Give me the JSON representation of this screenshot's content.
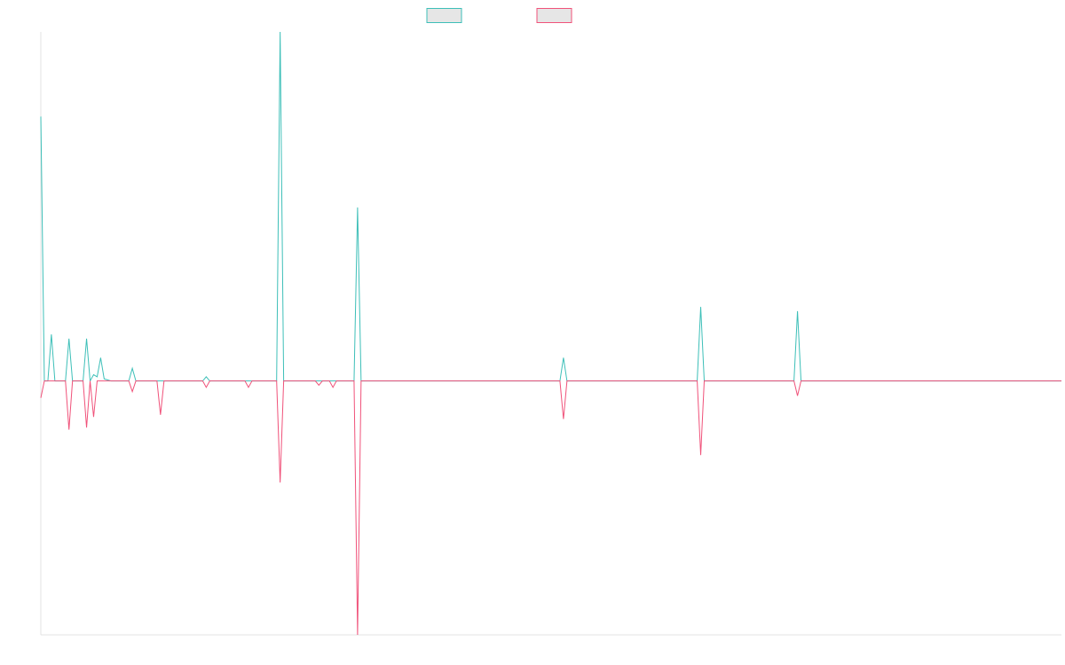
{
  "chart_data": {
    "type": "line",
    "title": "",
    "xlabel": "",
    "ylabel": "",
    "grid": false,
    "legend_position": "top-center",
    "xlim": [
      0,
      1160
    ],
    "ylim": [
      -12.0,
      16.5
    ],
    "x": [
      0,
      4,
      8,
      12,
      16,
      20,
      24,
      28,
      32,
      36,
      40,
      44,
      48,
      52,
      56,
      60,
      64,
      68,
      72,
      76,
      80,
      84,
      88,
      92,
      96,
      100,
      104,
      108,
      112,
      116,
      120,
      124,
      128,
      132,
      136,
      140,
      144,
      148,
      152,
      156,
      160,
      164,
      168,
      172,
      176,
      180,
      184,
      188,
      192,
      196,
      200,
      204,
      208,
      212,
      216,
      220,
      224,
      228,
      232,
      236,
      240,
      244,
      248,
      252,
      256,
      260,
      264,
      268,
      272,
      276,
      280,
      284,
      288,
      292,
      296,
      300,
      304,
      308,
      312,
      316,
      320,
      324,
      328,
      332,
      336,
      340,
      344,
      348,
      352,
      356,
      360,
      364,
      368,
      590,
      594,
      598,
      746,
      750,
      754,
      856,
      860,
      864,
      1160
    ],
    "series": [
      {
        "color": "#3dbfb8",
        "values": [
          12.5,
          0,
          0,
          2.2,
          0,
          0,
          0,
          0,
          2.0,
          0,
          0,
          0,
          0,
          2.0,
          0,
          0.3,
          0.2,
          1.1,
          0.1,
          0.05,
          0,
          0,
          0,
          0,
          0,
          0,
          0.6,
          0,
          0,
          0,
          0,
          0,
          0,
          0,
          0,
          0,
          0,
          0,
          0,
          0,
          0,
          0,
          0,
          0,
          0,
          0,
          0,
          0.2,
          0,
          0,
          0,
          0,
          0,
          0,
          0,
          0,
          0,
          0,
          0,
          0,
          0,
          0,
          0,
          0,
          0,
          0,
          0,
          0,
          16.5,
          0,
          0,
          0,
          0,
          0,
          0,
          0,
          0,
          0,
          0,
          0,
          0,
          0,
          0,
          0,
          0,
          0,
          0,
          0,
          0,
          0,
          8.2,
          0,
          0,
          0,
          1.1,
          0,
          0,
          3.5,
          0,
          0,
          3.3,
          0,
          0
        ]
      },
      {
        "color": "#f0527a",
        "values": [
          -0.8,
          0,
          0,
          0,
          0,
          0,
          0,
          0,
          -2.3,
          0,
          0,
          0,
          0,
          -2.2,
          0,
          -1.7,
          0,
          0,
          0,
          0,
          0,
          0,
          0,
          0,
          0,
          0,
          -0.5,
          0,
          0,
          0,
          0,
          0,
          0,
          0,
          -1.6,
          0,
          0,
          0,
          0,
          0,
          0,
          0,
          0,
          0,
          0,
          0,
          0,
          -0.3,
          0,
          0,
          0,
          0,
          0,
          0,
          0,
          0,
          0,
          0,
          0,
          -0.3,
          0,
          0,
          0,
          0,
          0,
          0,
          0,
          0,
          -4.8,
          0,
          0,
          0,
          0,
          0,
          0,
          0,
          0,
          0,
          0,
          -0.2,
          0,
          0,
          0,
          -0.3,
          0,
          0,
          0,
          0,
          0,
          0,
          -12.0,
          0,
          0,
          0,
          -1.8,
          0,
          0,
          -3.5,
          0,
          0,
          -0.7,
          0,
          0
        ]
      }
    ]
  },
  "legend": {
    "swatch_fill": "#e6e6e6",
    "items": [
      {
        "color": "#3dbfb8"
      },
      {
        "color": "#f0527a"
      }
    ]
  },
  "axis_color": "#e3e3e3"
}
